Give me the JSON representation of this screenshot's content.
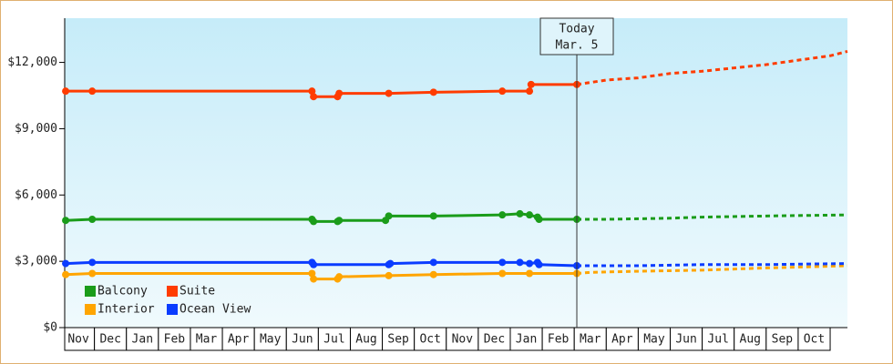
{
  "chart_data": {
    "type": "line",
    "ylim": [
      0,
      14000
    ],
    "yticks": [
      {
        "value": 0,
        "label": "$0"
      },
      {
        "value": 3000,
        "label": "$3,000"
      },
      {
        "value": 6000,
        "label": "$6,000"
      },
      {
        "value": 9000,
        "label": "$9,000"
      },
      {
        "value": 12000,
        "label": "$12,000"
      }
    ],
    "xlim": [
      0.07,
      24.54
    ],
    "xticks": [
      {
        "value": 0.5,
        "label": "Nov"
      },
      {
        "value": 1.5,
        "label": "Dec"
      },
      {
        "value": 2.5,
        "label": "Jan"
      },
      {
        "value": 3.5,
        "label": "Feb"
      },
      {
        "value": 4.5,
        "label": "Mar"
      },
      {
        "value": 5.5,
        "label": "Apr"
      },
      {
        "value": 6.5,
        "label": "May"
      },
      {
        "value": 7.5,
        "label": "Jun"
      },
      {
        "value": 8.5,
        "label": "Jul"
      },
      {
        "value": 9.5,
        "label": "Aug"
      },
      {
        "value": 10.5,
        "label": "Sep"
      },
      {
        "value": 11.5,
        "label": "Oct"
      },
      {
        "value": 12.5,
        "label": "Nov"
      },
      {
        "value": 13.5,
        "label": "Dec"
      },
      {
        "value": 14.5,
        "label": "Jan"
      },
      {
        "value": 15.5,
        "label": "Feb"
      },
      {
        "value": 16.5,
        "label": "Mar"
      },
      {
        "value": 17.5,
        "label": "Apr"
      },
      {
        "value": 18.5,
        "label": "May"
      },
      {
        "value": 19.5,
        "label": "Jun"
      },
      {
        "value": 20.5,
        "label": "Jul"
      },
      {
        "value": 21.5,
        "label": "Aug"
      },
      {
        "value": 22.5,
        "label": "Sep"
      },
      {
        "value": 23.5,
        "label": "Oct"
      }
    ],
    "today": {
      "x": 16.08,
      "label": [
        "Today",
        "Mar. 5"
      ]
    },
    "legend": "bottom-left",
    "series": [
      {
        "name": "Balcony",
        "color": "#1a9c1a",
        "x": [
          0.1,
          0.93,
          7.8,
          7.85,
          8.6,
          8.65,
          10.1,
          10.2,
          11.6,
          13.75,
          14.3,
          14.6,
          14.85,
          14.9,
          16.08
        ],
        "values": [
          4850,
          4900,
          4900,
          4800,
          4800,
          4850,
          4850,
          5050,
          5050,
          5100,
          5150,
          5100,
          5000,
          4900,
          4900
        ],
        "forecast_x": [
          16.08,
          17,
          19,
          20,
          22,
          24.54
        ],
        "forecast_values": [
          4900,
          4900,
          4950,
          5000,
          5050,
          5100
        ]
      },
      {
        "name": "Suite",
        "color": "#ff3c00",
        "x": [
          0.1,
          0.93,
          7.8,
          7.85,
          8.6,
          8.65,
          10.2,
          11.6,
          13.75,
          14.6,
          14.65,
          16.08
        ],
        "values": [
          10700,
          10700,
          10700,
          10450,
          10450,
          10600,
          10600,
          10650,
          10700,
          10700,
          11000,
          11000
        ],
        "forecast_x": [
          16.08,
          17,
          18,
          19,
          20,
          21,
          22,
          23,
          24,
          24.54
        ],
        "forecast_values": [
          11000,
          11200,
          11300,
          11500,
          11600,
          11750,
          11900,
          12100,
          12300,
          12500
        ]
      },
      {
        "name": "Interior",
        "color": "#ffa500",
        "x": [
          0.1,
          0.93,
          7.8,
          7.85,
          8.6,
          8.65,
          10.2,
          11.6,
          13.75,
          14.6,
          16.08
        ],
        "values": [
          2400,
          2450,
          2450,
          2200,
          2200,
          2300,
          2350,
          2400,
          2450,
          2450,
          2450
        ],
        "forecast_x": [
          16.08,
          16.5,
          18,
          20,
          22,
          24.54
        ],
        "forecast_values": [
          2450,
          2500,
          2550,
          2600,
          2700,
          2800
        ]
      },
      {
        "name": "Ocean View",
        "color": "#0a3cff",
        "x": [
          0.1,
          0.93,
          7.8,
          7.85,
          10.2,
          10.25,
          11.6,
          13.75,
          14.3,
          14.6,
          14.85,
          14.9,
          16.08
        ],
        "values": [
          2900,
          2950,
          2950,
          2850,
          2850,
          2900,
          2950,
          2950,
          2950,
          2900,
          2950,
          2850,
          2800
        ],
        "forecast_x": [
          16.08,
          18,
          20,
          22,
          24.54
        ],
        "forecast_values": [
          2800,
          2800,
          2850,
          2850,
          2900
        ]
      }
    ]
  }
}
